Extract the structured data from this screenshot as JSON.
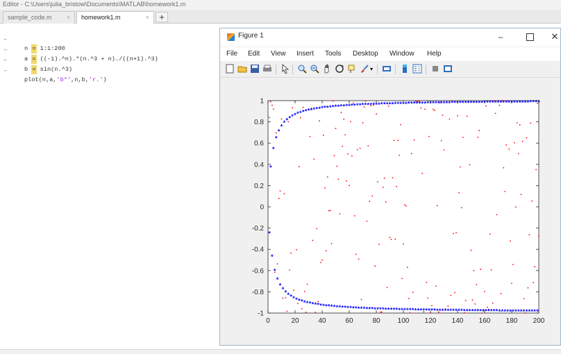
{
  "editor": {
    "title": "Editor - C:\\Users\\julia_bristow\\Documents\\MATLAB\\homework1.m",
    "tabs": [
      {
        "label": "sample_code.m",
        "close": "×"
      },
      {
        "label": "homework1.m",
        "close": "×"
      }
    ],
    "add_tab": "+",
    "lines": [
      {
        "dash": "–",
        "before": "n ",
        "eq": "=",
        "after": " 1:1:200",
        "str": ""
      },
      {
        "dash": "–",
        "before": "a ",
        "eq": "=",
        "after": " ((-1).^n).*(n.^3 + n)./((n+1).^3)",
        "str": ""
      },
      {
        "dash": "–",
        "before": "b ",
        "eq": "=",
        "after": " sin(n.^3)",
        "str": ""
      },
      {
        "dash": "–",
        "before": "plot(n,a,",
        "eq": "",
        "after": "",
        "str": "'b*'",
        "mid": ",n,b,",
        "str2": "'r.'",
        "end": ")"
      }
    ]
  },
  "figure": {
    "title": "Figure 1",
    "menu": [
      "File",
      "Edit",
      "View",
      "Insert",
      "Tools",
      "Desktop",
      "Window",
      "Help"
    ],
    "window_buttons": {
      "minimize": "–",
      "close": "✕"
    },
    "toolbar_icons": [
      "new-figure-icon",
      "open-file-icon",
      "save-icon",
      "print-icon",
      "pointer-icon",
      "zoom-in-icon",
      "zoom-out-icon",
      "pan-icon",
      "rotate-icon",
      "data-cursor-icon",
      "brush-icon",
      "dropdown-icon",
      "link-icon",
      "colorbar-icon",
      "legend-icon",
      "hide-plot-tools-icon",
      "show-plot-tools-icon"
    ]
  },
  "chart_data": {
    "type": "scatter",
    "xlim": [
      0,
      200
    ],
    "ylim": [
      -1,
      1
    ],
    "x_ticks": [
      0,
      20,
      40,
      60,
      80,
      100,
      120,
      140,
      160,
      180,
      200
    ],
    "y_ticks": [
      1,
      0.8,
      0.6,
      0.4,
      0.2,
      0,
      -0.2,
      -0.4,
      -0.6,
      -0.8,
      -1
    ],
    "grid": false,
    "series": [
      {
        "marker": "*",
        "color": "#0000ff",
        "formula": "a = ((-1).^n).*(n.^3 + n)./((n+1).^3)",
        "n_range": [
          1,
          200
        ]
      },
      {
        "marker": ".",
        "color": "#ff0000",
        "formula": "b = sin(n.^3)",
        "n_range": [
          1,
          200
        ]
      }
    ]
  }
}
